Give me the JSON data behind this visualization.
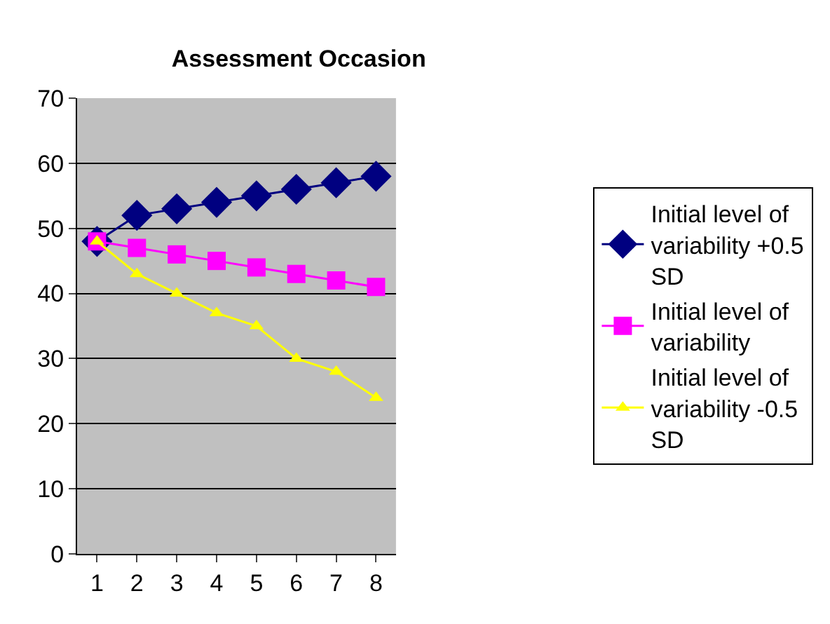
{
  "chart_data": {
    "type": "line",
    "title": "Assessment Occasion",
    "categories": [
      "1",
      "2",
      "3",
      "4",
      "5",
      "6",
      "7",
      "8"
    ],
    "series": [
      {
        "name": "Initial level of variability +0.5 SD",
        "color": "#000080",
        "marker": "diamond",
        "values": [
          48,
          52,
          53,
          54,
          55,
          56,
          57,
          58
        ]
      },
      {
        "name": "Initial level of variability",
        "color": "#ff00ff",
        "marker": "square",
        "values": [
          48,
          47,
          46,
          45,
          44,
          43,
          42,
          41
        ]
      },
      {
        "name": "Initial level of variability -0.5 SD",
        "color": "#ffff00",
        "marker": "triangle",
        "values": [
          48,
          43,
          40,
          37,
          35,
          30,
          28,
          24
        ]
      }
    ],
    "ylim": [
      0,
      70
    ],
    "yticks": [
      0,
      10,
      20,
      30,
      40,
      50,
      60,
      70
    ],
    "grid": "y",
    "legend": "right",
    "line_style": "solid"
  }
}
